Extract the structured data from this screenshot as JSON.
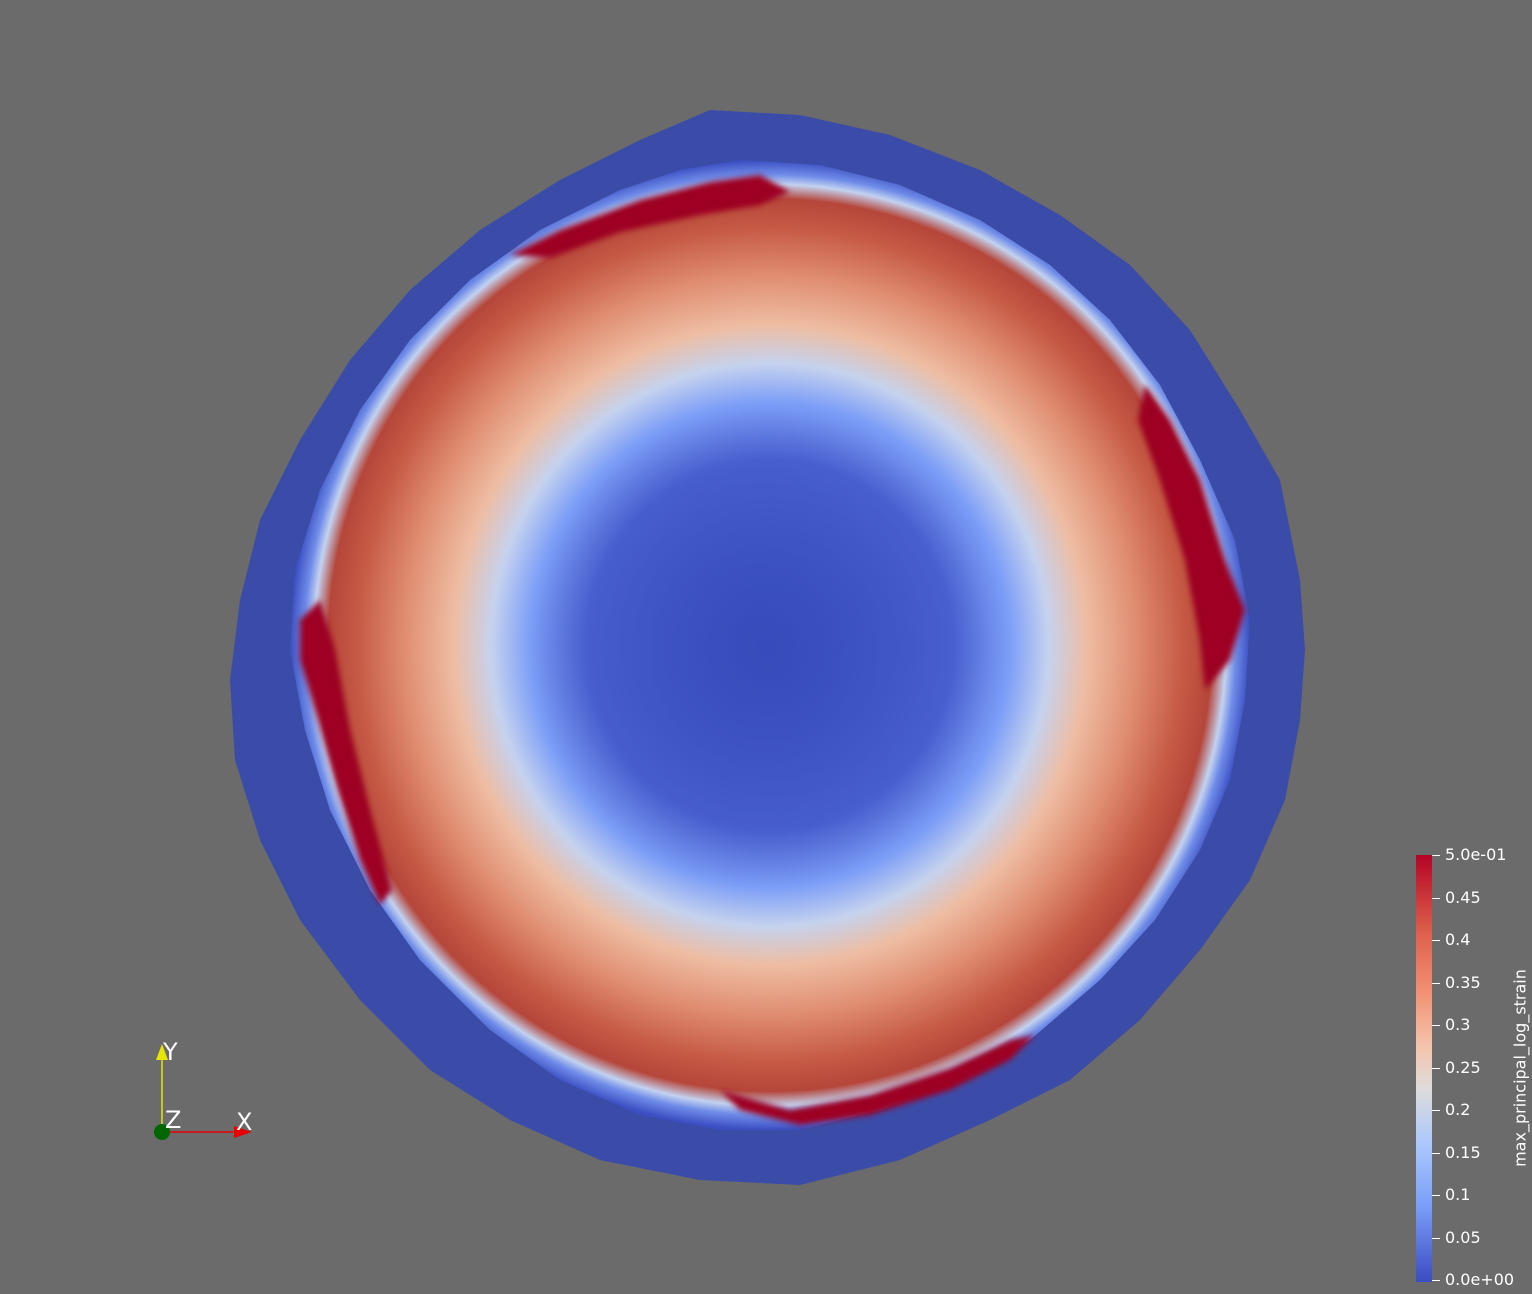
{
  "render": {
    "background_color": "#6b6b6b",
    "object": "disk",
    "colormap": "Cool to Warm"
  },
  "colorbar": {
    "title": "max_principal_log_strain",
    "range": [
      0.0,
      0.5
    ],
    "ticks": [
      "5.0e-01",
      "0.45",
      "0.4",
      "0.35",
      "0.3",
      "0.25",
      "0.2",
      "0.15",
      "0.1",
      "0.05",
      "0.0e+00"
    ],
    "colors": {
      "max": "#b40426",
      "mid": "#dddcdc",
      "min": "#3b4cc0"
    }
  },
  "axes": {
    "x": "X",
    "y": "Y",
    "z": "Z",
    "x_color": "#e60000",
    "y_color": "#e6e600",
    "z_color": "#006600"
  }
}
